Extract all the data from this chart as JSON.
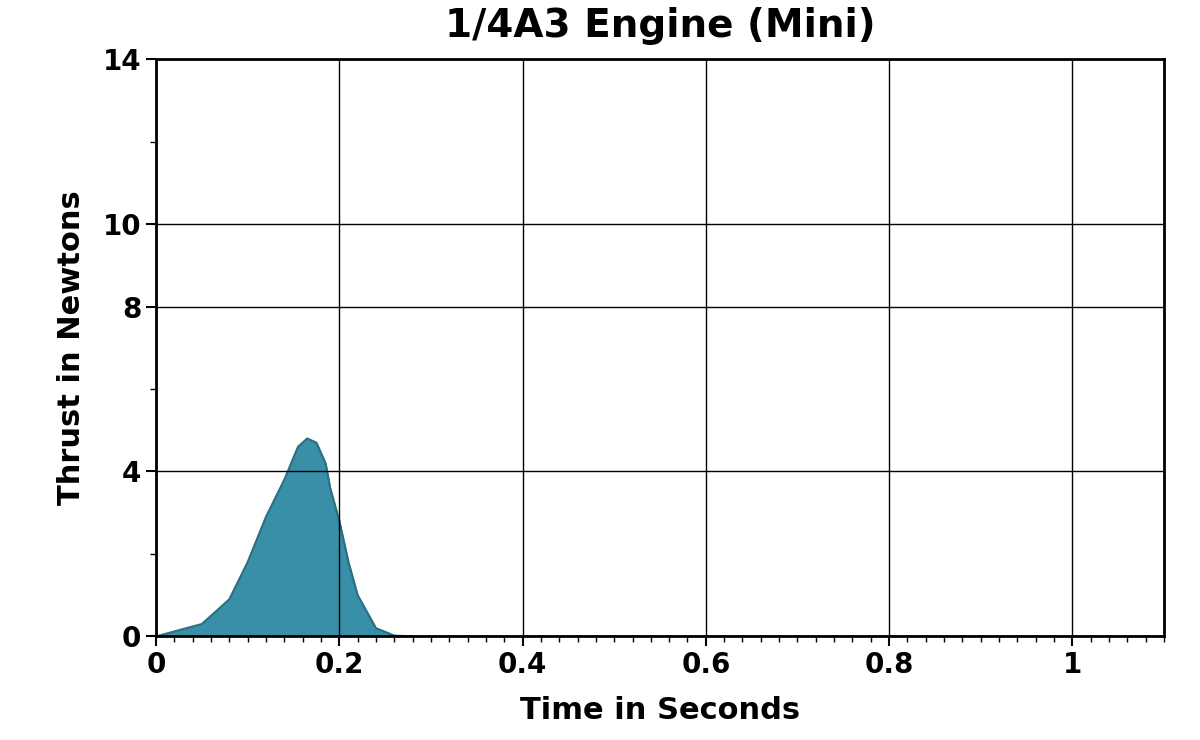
{
  "title": "1/4A3 Engine (Mini)",
  "xlabel": "Time in Seconds",
  "ylabel": "Thrust in Newtons",
  "xlim": [
    0,
    1.1
  ],
  "ylim": [
    0,
    14
  ],
  "xticks": [
    0,
    0.2,
    0.4,
    0.6,
    0.8,
    1.0
  ],
  "xtick_labels": [
    "0",
    "0.2",
    "0.4",
    "0.6",
    "0.8",
    "1"
  ],
  "yticks": [
    0,
    4,
    8,
    10,
    14
  ],
  "ytick_labels": [
    "0",
    "4",
    "8",
    "10",
    "14"
  ],
  "fill_color": "#3a8fa8",
  "line_color": "#2a7080",
  "background_color": "#ffffff",
  "title_fontsize": 28,
  "axis_label_fontsize": 22,
  "tick_fontsize": 20,
  "thrust_curve_x": [
    0.0,
    0.05,
    0.08,
    0.1,
    0.12,
    0.14,
    0.155,
    0.165,
    0.175,
    0.185,
    0.19,
    0.2,
    0.21,
    0.22,
    0.24,
    0.26,
    0.28
  ],
  "thrust_curve_y": [
    0.0,
    0.3,
    0.9,
    1.8,
    2.9,
    3.8,
    4.6,
    4.8,
    4.7,
    4.2,
    3.6,
    2.8,
    1.8,
    1.0,
    0.2,
    0.02,
    0.0
  ]
}
